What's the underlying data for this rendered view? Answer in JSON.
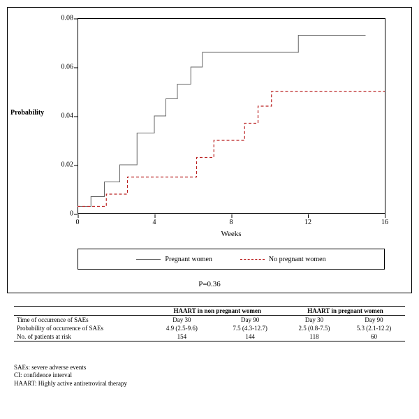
{
  "chart": {
    "type": "step-line",
    "ylabel": "Probability",
    "xlabel": "Weeks",
    "pvalue_label": "P=0.36",
    "ylim": [
      0,
      0.08
    ],
    "yticks": [
      0,
      0.02,
      0.04,
      0.06,
      0.08
    ],
    "xlim": [
      0,
      16
    ],
    "xticks": [
      0,
      4,
      8,
      12,
      16
    ],
    "background_color": "#ffffff",
    "axis_color": "#000000",
    "series": [
      {
        "name": "pregnant",
        "label": "Pregnant women",
        "color": "#666666",
        "dash": "0",
        "width": 1,
        "points": [
          [
            0,
            0.003
          ],
          [
            0.7,
            0.003
          ],
          [
            0.7,
            0.007
          ],
          [
            1.4,
            0.007
          ],
          [
            1.4,
            0.013
          ],
          [
            2.2,
            0.013
          ],
          [
            2.2,
            0.02
          ],
          [
            3.1,
            0.02
          ],
          [
            3.1,
            0.033
          ],
          [
            4.0,
            0.033
          ],
          [
            4.0,
            0.04
          ],
          [
            4.6,
            0.04
          ],
          [
            4.6,
            0.047
          ],
          [
            5.2,
            0.047
          ],
          [
            5.2,
            0.053
          ],
          [
            5.9,
            0.053
          ],
          [
            5.9,
            0.06
          ],
          [
            6.5,
            0.06
          ],
          [
            6.5,
            0.066
          ],
          [
            11.5,
            0.066
          ],
          [
            11.5,
            0.073
          ],
          [
            15.0,
            0.073
          ]
        ]
      },
      {
        "name": "nonpregnant",
        "label": "No pregnant women",
        "color": "#bb2222",
        "dash": "4 3",
        "width": 1.2,
        "points": [
          [
            0,
            0.003
          ],
          [
            1.5,
            0.003
          ],
          [
            1.5,
            0.008
          ],
          [
            2.6,
            0.008
          ],
          [
            2.6,
            0.015
          ],
          [
            6.2,
            0.015
          ],
          [
            6.2,
            0.023
          ],
          [
            7.1,
            0.023
          ],
          [
            7.1,
            0.03
          ],
          [
            8.7,
            0.03
          ],
          [
            8.7,
            0.037
          ],
          [
            9.4,
            0.037
          ],
          [
            9.4,
            0.044
          ],
          [
            10.1,
            0.044
          ],
          [
            10.1,
            0.05
          ],
          [
            16.0,
            0.05
          ]
        ]
      }
    ]
  },
  "table": {
    "group_headers": [
      "HAART in non pregnant women",
      "HAART in pregnant women"
    ],
    "sub_headers": [
      "Day 30",
      "Day 90",
      "Day 30",
      "Day 90"
    ],
    "rows": [
      {
        "label": "Time of occurrence of SAEs"
      },
      {
        "label": "Probability of occurrence of SAEs",
        "values": [
          "4.9 (2.5-9.6)",
          "7.5 (4.3-12.7)",
          "2.5 (0.8-7.5)",
          "5.3 (2.1-12.2)"
        ]
      },
      {
        "label": "No. of patients at risk",
        "values": [
          "154",
          "144",
          "118",
          "60"
        ]
      }
    ]
  },
  "abbr": [
    "SAEs: severe adverse events",
    "CI: confidence interval",
    "HAART: Highly active antiretroviral therapy"
  ]
}
